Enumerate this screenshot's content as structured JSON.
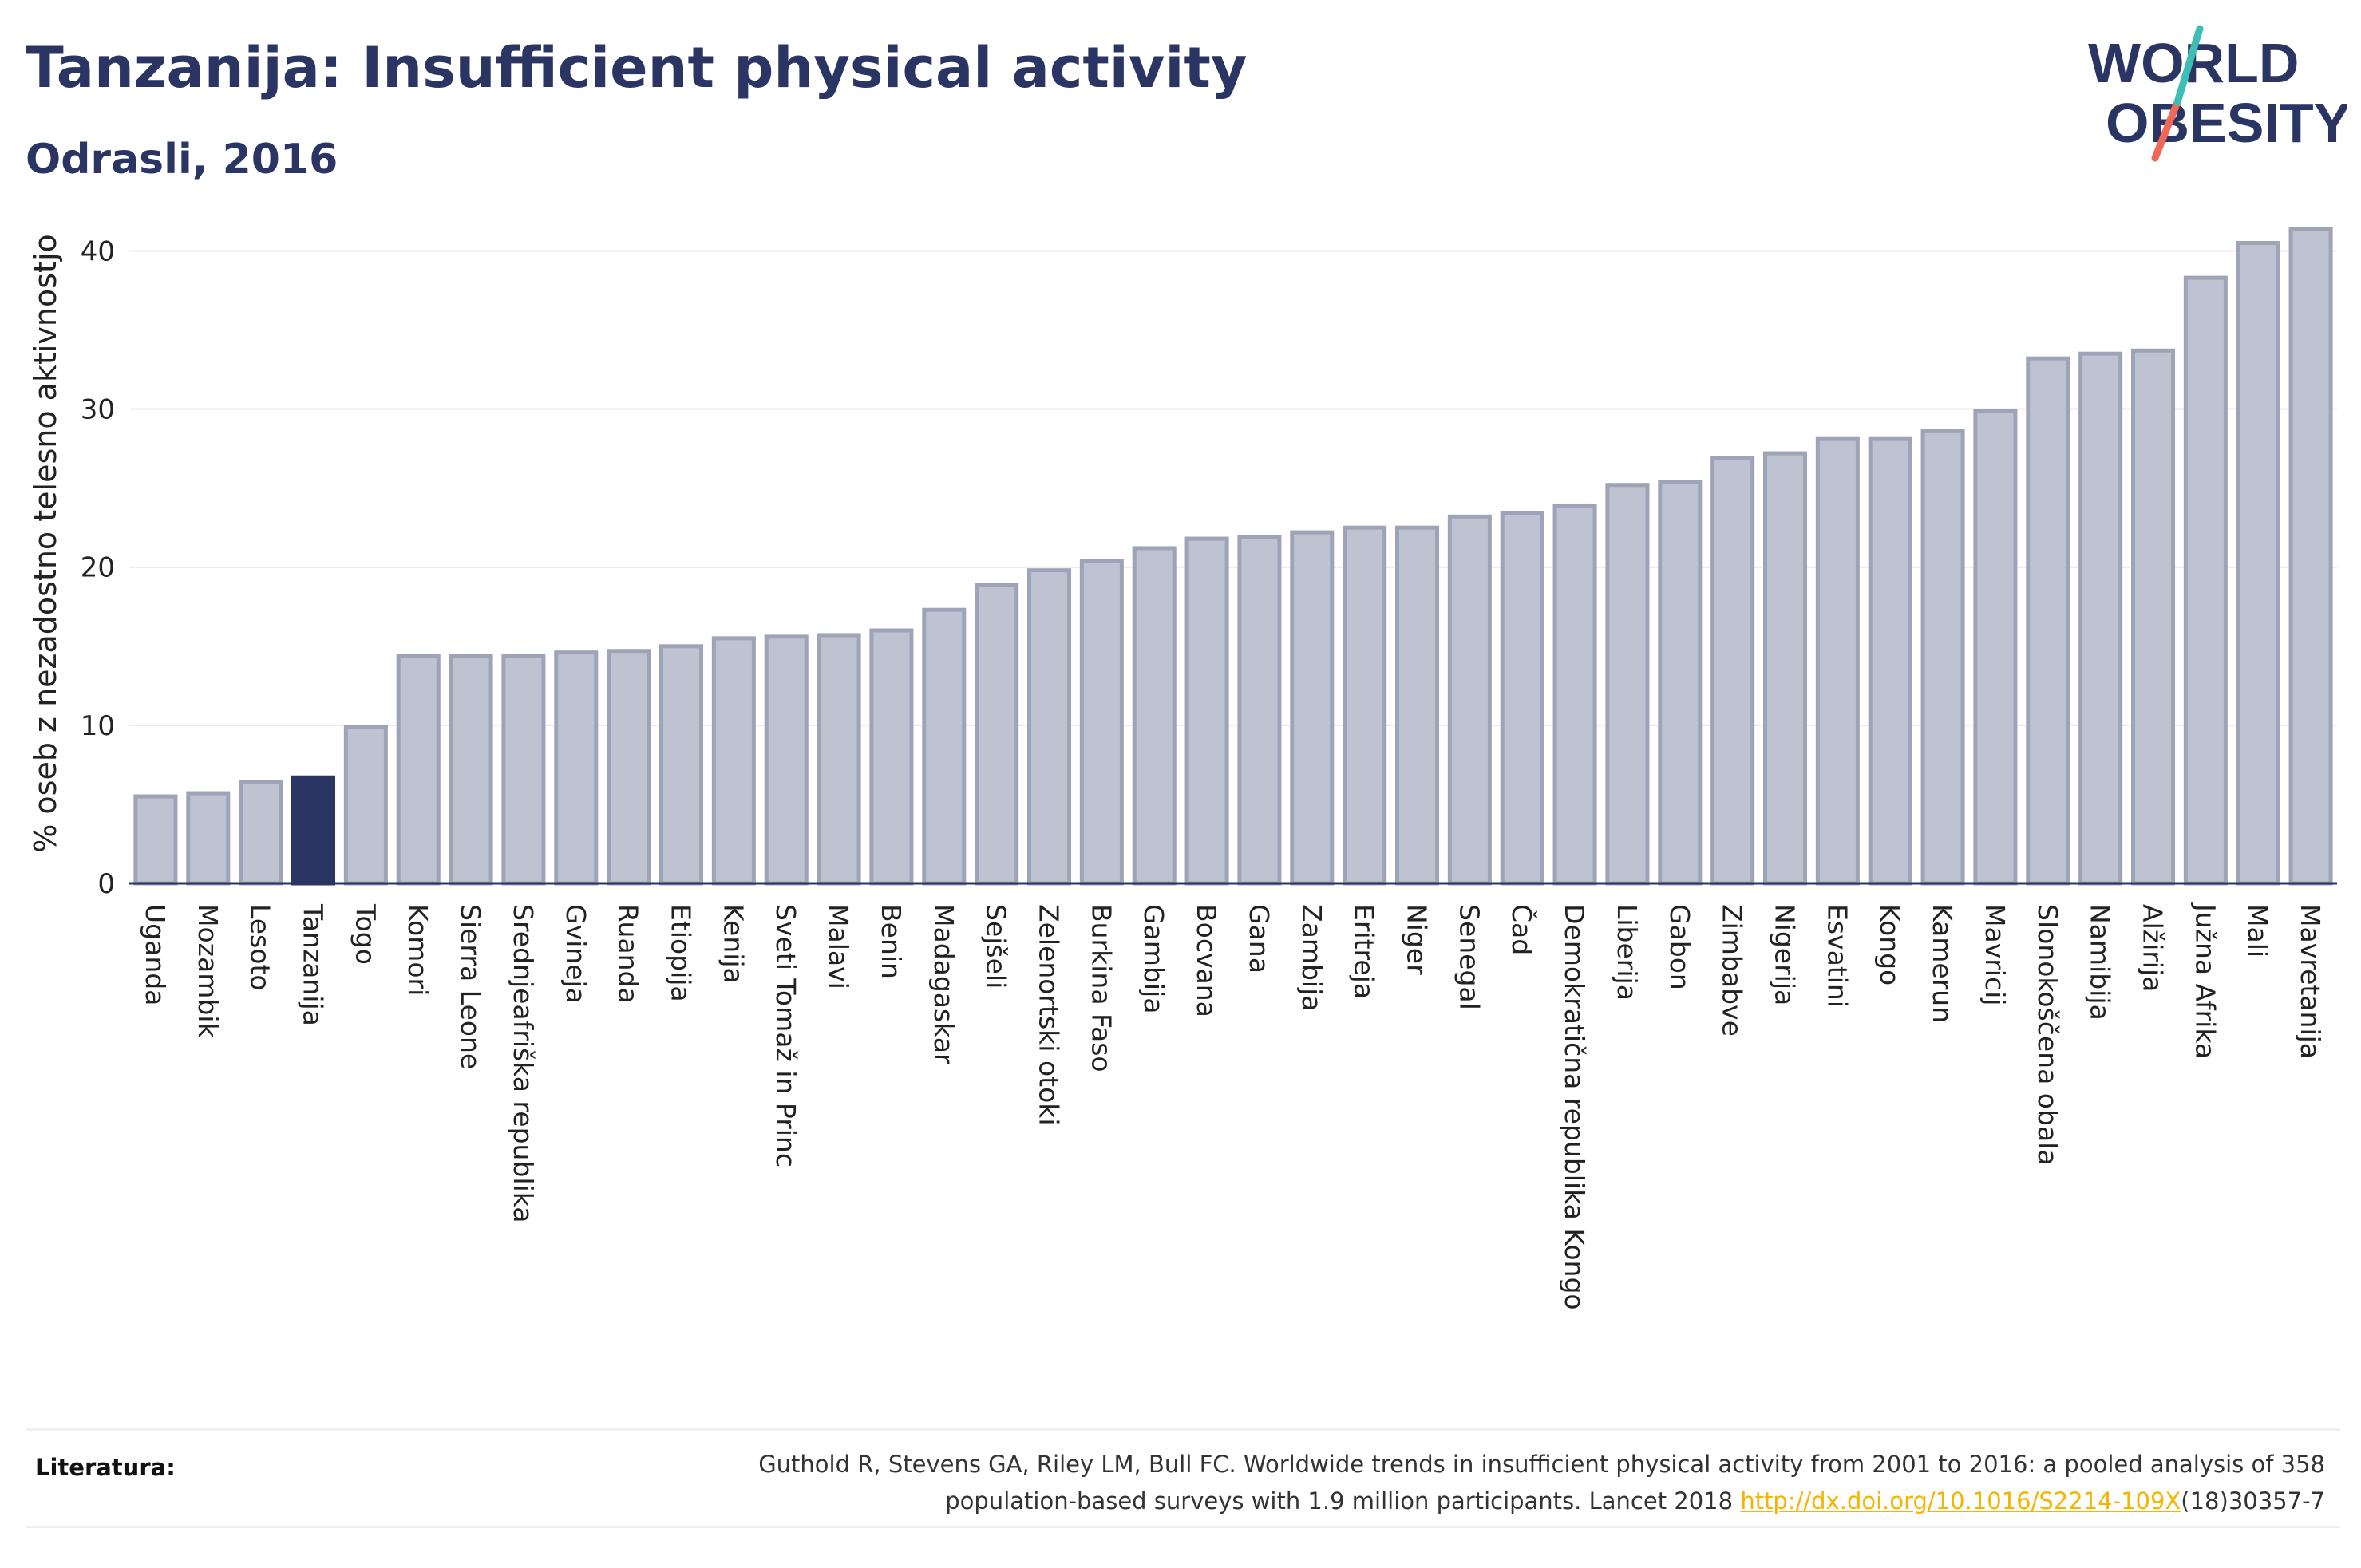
{
  "header": {
    "title": "Tanzanija: Insufficient physical activity",
    "subtitle": "Odrasli, 2016"
  },
  "logo": {
    "line1": "WORLD",
    "line2": "OBESITY"
  },
  "colors": {
    "bar_fill": "#bfc3d1",
    "bar_stroke": "#9ea3b7",
    "highlight": "#2b3563",
    "title": "#2b3563",
    "logo_teal": "#3dbfb5",
    "logo_coral": "#ee6a56",
    "link": "#f5b400"
  },
  "chart_data": {
    "type": "bar",
    "ylabel": "% oseb z nezadostno telesno aktivnostjo",
    "ylim": [
      0,
      43
    ],
    "yticks": [
      0,
      10,
      20,
      30,
      40
    ],
    "grid": true,
    "highlight_category": "Tanzanija",
    "categories": [
      "Uganda",
      "Mozambik",
      "Lesoto",
      "Tanzanija",
      "Togo",
      "Komori",
      "Sierra Leone",
      "Srednjeafriška republika",
      "Gvineja",
      "Ruanda",
      "Etiopija",
      "Kenija",
      "Sveti Tomaž in Princ",
      "Malavi",
      "Benin",
      "Madagaskar",
      "Sejšeli",
      "Zelenortski otoki",
      "Burkina Faso",
      "Gambija",
      "Bocvana",
      "Gana",
      "Zambija",
      "Eritreja",
      "Niger",
      "Senegal",
      "Čad",
      "Demokratična republika Kongo",
      "Liberija",
      "Gabon",
      "Zimbabve",
      "Nigerija",
      "Esvatini",
      "Kongo",
      "Kamerun",
      "Mavricij",
      "Slonokoščena obala",
      "Namibija",
      "Alžirija",
      "Južna Afrika",
      "Mali",
      "Mavretanija"
    ],
    "values": [
      5.5,
      5.7,
      6.4,
      6.7,
      9.9,
      14.4,
      14.4,
      14.4,
      14.6,
      14.7,
      15.0,
      15.5,
      15.6,
      15.7,
      16.0,
      17.3,
      18.9,
      19.8,
      20.4,
      21.2,
      21.8,
      21.9,
      22.2,
      22.5,
      22.5,
      23.2,
      23.4,
      23.9,
      25.2,
      25.4,
      26.9,
      27.2,
      28.1,
      28.1,
      28.6,
      29.9,
      33.2,
      33.5,
      33.7,
      38.3,
      40.5,
      41.4
    ]
  },
  "footer": {
    "label": "Literatura:",
    "citation_line1": "Guthold R, Stevens GA, Riley LM, Bull FC. Worldwide trends in insufficient physical activity from 2001 to 2016: a pooled analysis of 358",
    "citation_line2": "population-based surveys with 1.9 million participants. Lancet 2018 ",
    "citation_link": "http://dx.doi.org/10.1016/S2214-109X",
    "citation_after": "(18)30357-7"
  }
}
